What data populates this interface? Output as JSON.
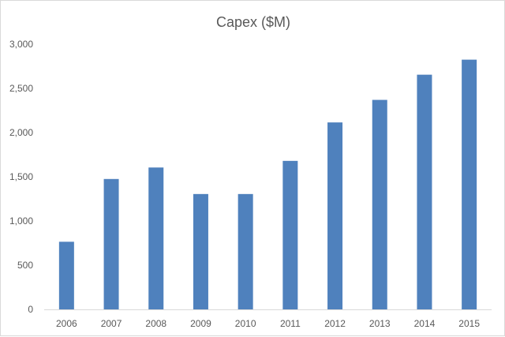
{
  "chart_data": {
    "type": "bar",
    "title": "Capex ($M)",
    "xlabel": "",
    "ylabel": "",
    "categories": [
      "2006",
      "2007",
      "2008",
      "2009",
      "2010",
      "2011",
      "2012",
      "2013",
      "2014",
      "2015"
    ],
    "values": [
      765,
      1475,
      1605,
      1305,
      1305,
      1680,
      2115,
      2370,
      2655,
      2825
    ],
    "ylim": [
      0,
      3000
    ],
    "yticks": [
      0,
      500,
      1000,
      1500,
      2000,
      2500,
      3000
    ],
    "ytick_labels": [
      "0",
      "500",
      "1,000",
      "1,500",
      "2,000",
      "2,500",
      "3,000"
    ],
    "grid": false,
    "legend": "none",
    "colors": {
      "bar": "#4f81bd",
      "text": "#595959",
      "axis": "#d9d9d9"
    }
  }
}
